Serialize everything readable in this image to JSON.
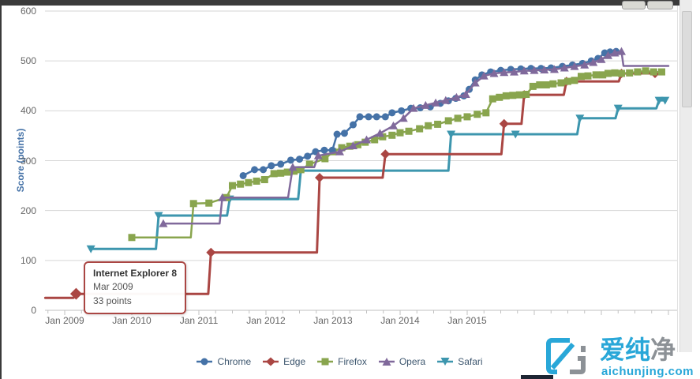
{
  "window": {
    "topbar_color": "#3b3b3b",
    "buttons": [
      {
        "name": "toolbar-button-1",
        "x": 788,
        "w": 28
      },
      {
        "name": "toolbar-button-2",
        "x": 820,
        "w": 31
      }
    ]
  },
  "y_axis": {
    "title": "Score (points)",
    "ticks": [
      0,
      100,
      200,
      300,
      400,
      500,
      600
    ]
  },
  "x_axis": {
    "labels": [
      {
        "year": 2009,
        "label": "Jan 2009"
      },
      {
        "year": 2010,
        "label": "Jan 2010"
      },
      {
        "year": 2011,
        "label": "Jan 2011"
      },
      {
        "year": 2012,
        "label": "Jan 2012"
      },
      {
        "year": 2013,
        "label": "Jan 2013"
      },
      {
        "year": 2014,
        "label": "Jan 2014"
      },
      {
        "year": 2015,
        "label": "Jan 2015"
      }
    ]
  },
  "tooltip": {
    "title": "Internet Explorer 8",
    "date": "Mar 2009",
    "value": "33 points"
  },
  "watermark": {
    "brand_cyan": "爱纯",
    "brand_gray": "净",
    "domain_name": "aichunjing",
    "domain_tld": ".com",
    "cyan": "#29a7d8",
    "gray": "#8c9196"
  },
  "chart_data": {
    "type": "line",
    "title": "",
    "xlabel": "",
    "ylabel": "Score (points)",
    "x_range": [
      2008.71,
      2018.13
    ],
    "ylim": [
      0,
      600
    ],
    "grid": true,
    "legend_position": "bottom",
    "grid_color": "#d6d6d6",
    "axis_color": "#c0c0c0",
    "tooltip_point": {
      "series": "Edge",
      "x": 2009.17,
      "y": 33
    },
    "series": [
      {
        "name": "Safari",
        "color": "#3D96AE",
        "marker": "triangle-down",
        "width": 3,
        "points": [
          [
            2009.39,
            123,
            1
          ],
          [
            2010.36,
            123,
            0
          ],
          [
            2010.4,
            190,
            1
          ],
          [
            2011.42,
            190,
            0
          ],
          [
            2011.46,
            223,
            1
          ],
          [
            2012.48,
            223,
            0
          ],
          [
            2012.52,
            280,
            1
          ],
          [
            2014.72,
            280,
            0
          ],
          [
            2014.76,
            353,
            1
          ],
          [
            2015.72,
            353,
            1
          ],
          [
            2016.64,
            353,
            0
          ],
          [
            2016.68,
            385,
            1
          ],
          [
            2017.21,
            385,
            0
          ],
          [
            2017.25,
            405,
            1
          ],
          [
            2017.82,
            405,
            0
          ],
          [
            2017.86,
            421,
            1
          ],
          [
            2017.95,
            421,
            1
          ]
        ]
      },
      {
        "name": "Edge",
        "color": "#AA4643",
        "marker": "diamond",
        "width": 3,
        "points": [
          [
            2008.71,
            25,
            0
          ],
          [
            2009.13,
            25,
            0
          ],
          [
            2009.17,
            33,
            1
          ],
          [
            2011.14,
            33,
            0
          ],
          [
            2011.18,
            116,
            1
          ],
          [
            2012.76,
            116,
            0
          ],
          [
            2012.8,
            266,
            1
          ],
          [
            2013.74,
            266,
            0
          ],
          [
            2013.78,
            313,
            1
          ],
          [
            2015.51,
            313,
            0
          ],
          [
            2015.55,
            374,
            1
          ],
          [
            2015.81,
            374,
            0
          ],
          [
            2015.85,
            432,
            1
          ],
          [
            2016.44,
            432,
            0
          ],
          [
            2016.48,
            459,
            1
          ],
          [
            2017.26,
            459,
            0
          ],
          [
            2017.3,
            475,
            1
          ],
          [
            2017.8,
            475,
            1
          ]
        ]
      },
      {
        "name": "Firefox",
        "color": "#89A54E",
        "marker": "square",
        "width": 2.5,
        "points": [
          [
            2010.0,
            146,
            1
          ],
          [
            2010.88,
            146,
            0
          ],
          [
            2010.92,
            214,
            1
          ],
          [
            2011.15,
            215,
            1
          ],
          [
            2011.41,
            226,
            1
          ],
          [
            2011.5,
            250,
            1
          ],
          [
            2011.62,
            253,
            1
          ],
          [
            2011.74,
            256,
            1
          ],
          [
            2011.86,
            259,
            1
          ],
          [
            2011.98,
            262,
            1
          ],
          [
            2012.12,
            274,
            1
          ],
          [
            2012.22,
            275,
            1
          ],
          [
            2012.32,
            277,
            1
          ],
          [
            2012.42,
            279,
            1
          ],
          [
            2012.52,
            282,
            1
          ],
          [
            2012.65,
            293,
            1
          ],
          [
            2012.88,
            304,
            1
          ],
          [
            2013.0,
            318,
            1
          ],
          [
            2013.13,
            326,
            1
          ],
          [
            2013.25,
            329,
            1
          ],
          [
            2013.37,
            332,
            1
          ],
          [
            2013.48,
            337,
            1
          ],
          [
            2013.62,
            342,
            1
          ],
          [
            2013.74,
            348,
            1
          ],
          [
            2013.88,
            351,
            1
          ],
          [
            2014.0,
            356,
            1
          ],
          [
            2014.13,
            359,
            1
          ],
          [
            2014.29,
            364,
            1
          ],
          [
            2014.42,
            370,
            1
          ],
          [
            2014.56,
            373,
            1
          ],
          [
            2014.72,
            380,
            1
          ],
          [
            2014.86,
            385,
            1
          ],
          [
            2015.0,
            388,
            1
          ],
          [
            2015.15,
            393,
            1
          ],
          [
            2015.28,
            396,
            1
          ],
          [
            2015.38,
            424,
            1
          ],
          [
            2015.48,
            427,
            1
          ],
          [
            2015.58,
            430,
            1
          ],
          [
            2015.68,
            431,
            1
          ],
          [
            2015.78,
            432,
            1
          ],
          [
            2015.88,
            433,
            1
          ],
          [
            2015.98,
            449,
            1
          ],
          [
            2016.08,
            452,
            1
          ],
          [
            2016.18,
            452,
            1
          ],
          [
            2016.28,
            454,
            1
          ],
          [
            2016.4,
            456,
            1
          ],
          [
            2016.5,
            459,
            1
          ],
          [
            2016.6,
            461,
            1
          ],
          [
            2016.7,
            469,
            1
          ],
          [
            2016.8,
            470,
            1
          ],
          [
            2016.92,
            472,
            1
          ],
          [
            2017.02,
            472,
            1
          ],
          [
            2017.1,
            475,
            1
          ],
          [
            2017.2,
            476,
            1
          ],
          [
            2017.3,
            475,
            1
          ],
          [
            2017.42,
            476,
            1
          ],
          [
            2017.54,
            478,
            1
          ],
          [
            2017.66,
            480,
            1
          ],
          [
            2017.78,
            478,
            1
          ],
          [
            2017.9,
            478,
            1
          ]
        ]
      },
      {
        "name": "Chrome",
        "color": "#4572A7",
        "marker": "circle",
        "width": 2.5,
        "points": [
          [
            2011.66,
            270,
            1
          ],
          [
            2011.83,
            282,
            1
          ],
          [
            2011.96,
            282,
            1
          ],
          [
            2012.08,
            290,
            1
          ],
          [
            2012.22,
            293,
            1
          ],
          [
            2012.37,
            301,
            1
          ],
          [
            2012.5,
            303,
            1
          ],
          [
            2012.62,
            309,
            1
          ],
          [
            2012.74,
            318,
            1
          ],
          [
            2012.87,
            321,
            1
          ],
          [
            2012.99,
            321,
            1
          ],
          [
            2013.06,
            353,
            1
          ],
          [
            2013.17,
            355,
            1
          ],
          [
            2013.3,
            372,
            1
          ],
          [
            2013.4,
            388,
            1
          ],
          [
            2013.53,
            388,
            1
          ],
          [
            2013.65,
            388,
            1
          ],
          [
            2013.78,
            388,
            1
          ],
          [
            2013.88,
            396,
            1
          ],
          [
            2014.02,
            400,
            1
          ],
          [
            2014.16,
            405,
            1
          ],
          [
            2014.3,
            406,
            1
          ],
          [
            2014.45,
            408,
            1
          ],
          [
            2014.6,
            415,
            1
          ],
          [
            2014.72,
            420,
            1
          ],
          [
            2014.83,
            425,
            1
          ],
          [
            2014.95,
            430,
            1
          ],
          [
            2015.03,
            443,
            1
          ],
          [
            2015.12,
            462,
            1
          ],
          [
            2015.22,
            472,
            1
          ],
          [
            2015.35,
            478,
            1
          ],
          [
            2015.5,
            481,
            1
          ],
          [
            2015.65,
            483,
            1
          ],
          [
            2015.8,
            484,
            1
          ],
          [
            2015.95,
            485,
            1
          ],
          [
            2016.1,
            485,
            1
          ],
          [
            2016.25,
            486,
            1
          ],
          [
            2016.42,
            489,
            1
          ],
          [
            2016.57,
            492,
            1
          ],
          [
            2016.72,
            495,
            1
          ],
          [
            2016.85,
            500,
            1
          ],
          [
            2016.95,
            505,
            1
          ],
          [
            2017.05,
            516,
            1
          ],
          [
            2017.13,
            518,
            1
          ],
          [
            2017.22,
            519,
            1
          ]
        ]
      },
      {
        "name": "Opera",
        "color": "#80699B",
        "marker": "triangle-up",
        "width": 2.5,
        "points": [
          [
            2010.47,
            174,
            1
          ],
          [
            2011.31,
            174,
            0
          ],
          [
            2011.35,
            226,
            1
          ],
          [
            2012.33,
            226,
            0
          ],
          [
            2012.4,
            287,
            1
          ],
          [
            2012.72,
            287,
            0
          ],
          [
            2012.78,
            310,
            1
          ],
          [
            2013.1,
            318,
            1
          ],
          [
            2013.3,
            330,
            1
          ],
          [
            2013.5,
            342,
            1
          ],
          [
            2013.7,
            355,
            1
          ],
          [
            2013.9,
            370,
            1
          ],
          [
            2014.05,
            385,
            1
          ],
          [
            2014.2,
            405,
            1
          ],
          [
            2014.38,
            411,
            1
          ],
          [
            2014.53,
            416,
            1
          ],
          [
            2014.68,
            421,
            1
          ],
          [
            2014.84,
            427,
            1
          ],
          [
            2014.98,
            433,
            1
          ],
          [
            2015.12,
            456,
            1
          ],
          [
            2015.25,
            470,
            1
          ],
          [
            2015.4,
            475,
            1
          ],
          [
            2015.55,
            477,
            1
          ],
          [
            2015.7,
            478,
            1
          ],
          [
            2015.85,
            480,
            1
          ],
          [
            2016.0,
            481,
            1
          ],
          [
            2016.15,
            482,
            1
          ],
          [
            2016.3,
            483,
            1
          ],
          [
            2016.45,
            486,
            1
          ],
          [
            2016.6,
            489,
            1
          ],
          [
            2016.75,
            492,
            1
          ],
          [
            2016.88,
            497,
            1
          ],
          [
            2017.0,
            503,
            1
          ],
          [
            2017.1,
            511,
            1
          ],
          [
            2017.2,
            516,
            1
          ],
          [
            2017.3,
            519,
            1
          ],
          [
            2017.33,
            490,
            0
          ],
          [
            2018.0,
            490,
            0
          ]
        ]
      }
    ],
    "legend_order": [
      "Chrome",
      "Edge",
      "Firefox",
      "Opera",
      "Safari"
    ]
  }
}
